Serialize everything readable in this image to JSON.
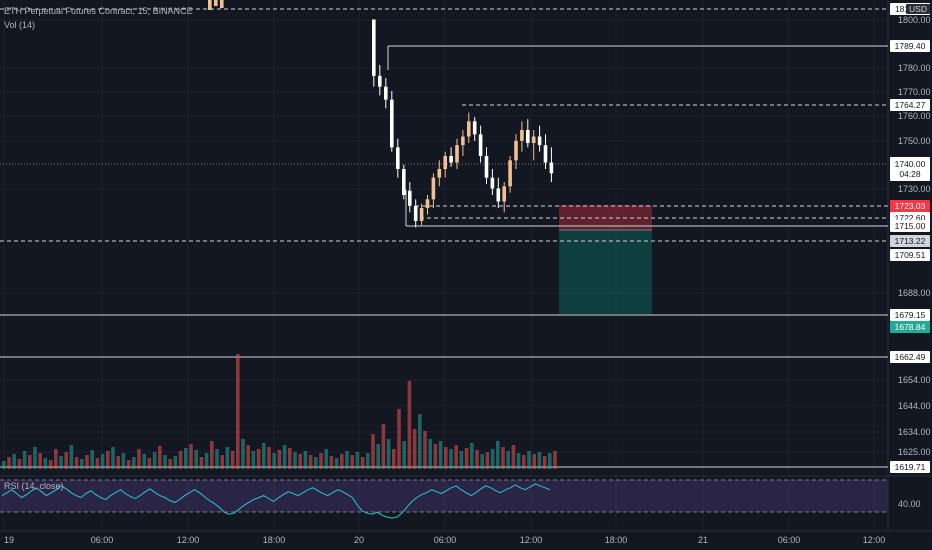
{
  "chart_data": {
    "type": "candlestick",
    "symbol_title": "ETH Perpetual Futures Contract, 15, BINANCE",
    "currency_badge": "USD",
    "volume_label": "Vol (14)",
    "rsi_label": "RSI (14, close)",
    "price_ticks": [
      "1800.00",
      "1780.00",
      "1770.00",
      "1760.00",
      "1750.00",
      "1730.00",
      "1688.00",
      "1654.00",
      "1644.00",
      "1634.00",
      "1625.00"
    ],
    "rsi_tick": "40.00",
    "time_ticks": [
      "19",
      "06:00",
      "12:00",
      "18:00",
      "20",
      "06:00",
      "12:00",
      "18:00",
      "21",
      "06:00",
      "12:00"
    ],
    "horizontal_levels": [
      {
        "label": "1789.40",
        "style": "solid",
        "bg": "#ffffff",
        "fg": "#131722"
      },
      {
        "label": "1764.27",
        "style": "dashed",
        "bg": "#ffffff",
        "fg": "#131722"
      },
      {
        "label": "1723.03",
        "style": "dashed",
        "bg": "#f23645",
        "fg": "#ffffff"
      },
      {
        "label": "1722.60",
        "style": "dashed",
        "bg": "#ffffff",
        "fg": "#131722"
      },
      {
        "label": "1715.00",
        "style": "solid",
        "bg": "#ffffff",
        "fg": "#131722"
      },
      {
        "label": "1713.22",
        "style": "dashed",
        "bg": "#d1d4dc",
        "fg": "#131722"
      },
      {
        "label": "1709.51",
        "style": "none",
        "bg": "#ffffff",
        "fg": "#131722"
      },
      {
        "label": "1679.15",
        "style": "solid",
        "bg": "#ffffff",
        "fg": "#131722"
      },
      {
        "label": "1678.84",
        "style": "none",
        "bg": "#22ab94",
        "fg": "#ffffff"
      },
      {
        "label": "1662.49",
        "style": "solid",
        "bg": "#ffffff",
        "fg": "#131722"
      },
      {
        "label": "1619.71",
        "style": "solid",
        "bg": "#ffffff",
        "fg": "#131722"
      }
    ],
    "current_price": {
      "label": "1740.00",
      "countdown": "04:28"
    },
    "top_price_label": "1811.97",
    "position": {
      "entry": 1723.03,
      "stop": 1730.0,
      "target": 1679.15
    },
    "candles": [
      {
        "o": 1732,
        "h": 1736,
        "l": 1722,
        "c": 1725
      },
      {
        "o": 1725,
        "h": 1728,
        "l": 1715,
        "c": 1718
      },
      {
        "o": 1718,
        "h": 1726,
        "l": 1716,
        "c": 1724
      },
      {
        "o": 1724,
        "h": 1730,
        "l": 1721,
        "c": 1728
      },
      {
        "o": 1728,
        "h": 1740,
        "l": 1724,
        "c": 1738
      },
      {
        "o": 1738,
        "h": 1746,
        "l": 1734,
        "c": 1742
      },
      {
        "o": 1742,
        "h": 1750,
        "l": 1738,
        "c": 1748
      },
      {
        "o": 1748,
        "h": 1752,
        "l": 1743,
        "c": 1745
      },
      {
        "o": 1745,
        "h": 1756,
        "l": 1742,
        "c": 1753
      },
      {
        "o": 1753,
        "h": 1760,
        "l": 1748,
        "c": 1757
      },
      {
        "o": 1757,
        "h": 1768,
        "l": 1754,
        "c": 1764
      },
      {
        "o": 1764,
        "h": 1766,
        "l": 1755,
        "c": 1758
      },
      {
        "o": 1758,
        "h": 1762,
        "l": 1745,
        "c": 1748
      },
      {
        "o": 1748,
        "h": 1752,
        "l": 1735,
        "c": 1738
      },
      {
        "o": 1738,
        "h": 1742,
        "l": 1730,
        "c": 1733
      },
      {
        "o": 1733,
        "h": 1738,
        "l": 1724,
        "c": 1727
      },
      {
        "o": 1727,
        "h": 1736,
        "l": 1722,
        "c": 1734
      },
      {
        "o": 1734,
        "h": 1748,
        "l": 1731,
        "c": 1746
      },
      {
        "o": 1746,
        "h": 1758,
        "l": 1742,
        "c": 1755
      },
      {
        "o": 1755,
        "h": 1764,
        "l": 1750,
        "c": 1760
      },
      {
        "o": 1760,
        "h": 1765,
        "l": 1752,
        "c": 1754
      },
      {
        "o": 1754,
        "h": 1760,
        "l": 1746,
        "c": 1757
      },
      {
        "o": 1757,
        "h": 1762,
        "l": 1750,
        "c": 1753
      },
      {
        "o": 1753,
        "h": 1758,
        "l": 1742,
        "c": 1745
      },
      {
        "o": 1745,
        "h": 1752,
        "l": 1736,
        "c": 1740
      }
    ],
    "volume_bars": [
      {
        "v": 8,
        "up": true
      },
      {
        "v": 12,
        "up": false
      },
      {
        "v": 15,
        "up": true
      },
      {
        "v": 10,
        "up": false
      },
      {
        "v": 18,
        "up": true
      },
      {
        "v": 14,
        "up": false
      },
      {
        "v": 22,
        "up": true
      },
      {
        "v": 16,
        "up": false
      },
      {
        "v": 11,
        "up": true
      },
      {
        "v": 9,
        "up": false
      },
      {
        "v": 20,
        "up": false
      },
      {
        "v": 13,
        "up": true
      },
      {
        "v": 17,
        "up": false
      },
      {
        "v": 24,
        "up": true
      },
      {
        "v": 12,
        "up": false
      },
      {
        "v": 10,
        "up": true
      },
      {
        "v": 14,
        "up": false
      },
      {
        "v": 19,
        "up": true
      },
      {
        "v": 11,
        "up": false
      },
      {
        "v": 15,
        "up": true
      },
      {
        "v": 18,
        "up": false
      },
      {
        "v": 22,
        "up": true
      },
      {
        "v": 13,
        "up": false
      },
      {
        "v": 16,
        "up": true
      },
      {
        "v": 9,
        "up": false
      },
      {
        "v": 12,
        "up": true
      },
      {
        "v": 20,
        "up": false
      },
      {
        "v": 15,
        "up": true
      },
      {
        "v": 11,
        "up": false
      },
      {
        "v": 17,
        "up": true
      },
      {
        "v": 23,
        "up": false
      },
      {
        "v": 14,
        "up": true
      },
      {
        "v": 10,
        "up": false
      },
      {
        "v": 13,
        "up": true
      },
      {
        "v": 18,
        "up": false
      },
      {
        "v": 21,
        "up": true
      },
      {
        "v": 25,
        "up": false
      },
      {
        "v": 19,
        "up": true
      },
      {
        "v": 12,
        "up": false
      },
      {
        "v": 16,
        "up": true
      },
      {
        "v": 28,
        "up": false
      },
      {
        "v": 20,
        "up": true
      },
      {
        "v": 14,
        "up": false
      },
      {
        "v": 22,
        "up": true
      },
      {
        "v": 18,
        "up": false
      },
      {
        "v": 115,
        "up": false
      },
      {
        "v": 30,
        "up": true
      },
      {
        "v": 24,
        "up": false
      },
      {
        "v": 18,
        "up": true
      },
      {
        "v": 20,
        "up": false
      },
      {
        "v": 26,
        "up": true
      },
      {
        "v": 22,
        "up": false
      },
      {
        "v": 16,
        "up": true
      },
      {
        "v": 19,
        "up": false
      },
      {
        "v": 24,
        "up": true
      },
      {
        "v": 21,
        "up": false
      },
      {
        "v": 17,
        "up": true
      },
      {
        "v": 15,
        "up": false
      },
      {
        "v": 18,
        "up": true
      },
      {
        "v": 14,
        "up": false
      },
      {
        "v": 12,
        "up": true
      },
      {
        "v": 16,
        "up": false
      },
      {
        "v": 20,
        "up": true
      },
      {
        "v": 13,
        "up": false
      },
      {
        "v": 11,
        "up": true
      },
      {
        "v": 15,
        "up": false
      },
      {
        "v": 18,
        "up": true
      },
      {
        "v": 14,
        "up": false
      },
      {
        "v": 17,
        "up": true
      },
      {
        "v": 12,
        "up": false
      },
      {
        "v": 16,
        "up": true
      },
      {
        "v": 35,
        "up": false
      },
      {
        "v": 25,
        "up": true
      },
      {
        "v": 45,
        "up": false
      },
      {
        "v": 30,
        "up": true
      },
      {
        "v": 20,
        "up": false
      },
      {
        "v": 60,
        "up": false
      },
      {
        "v": 28,
        "up": true
      },
      {
        "v": 88,
        "up": false
      },
      {
        "v": 40,
        "up": false
      },
      {
        "v": 55,
        "up": true
      },
      {
        "v": 38,
        "up": false
      },
      {
        "v": 30,
        "up": true
      },
      {
        "v": 25,
        "up": false
      },
      {
        "v": 28,
        "up": true
      },
      {
        "v": 22,
        "up": false
      },
      {
        "v": 20,
        "up": true
      },
      {
        "v": 24,
        "up": false
      },
      {
        "v": 18,
        "up": true
      },
      {
        "v": 21,
        "up": false
      },
      {
        "v": 26,
        "up": true
      },
      {
        "v": 19,
        "up": false
      },
      {
        "v": 15,
        "up": true
      },
      {
        "v": 17,
        "up": false
      },
      {
        "v": 20,
        "up": true
      },
      {
        "v": 28,
        "up": true
      },
      {
        "v": 22,
        "up": false
      },
      {
        "v": 18,
        "up": true
      },
      {
        "v": 24,
        "up": false
      },
      {
        "v": 16,
        "up": true
      },
      {
        "v": 14,
        "up": false
      },
      {
        "v": 18,
        "up": true
      },
      {
        "v": 15,
        "up": false
      },
      {
        "v": 17,
        "up": true
      },
      {
        "v": 13,
        "up": false
      },
      {
        "v": 16,
        "up": true
      },
      {
        "v": 18,
        "up": false
      }
    ],
    "rsi_values": [
      52,
      55,
      58,
      54,
      50,
      53,
      57,
      60,
      56,
      52,
      55,
      58,
      62,
      59,
      55,
      52,
      50,
      54,
      57,
      53,
      50,
      48,
      52,
      55,
      58,
      54,
      51,
      49,
      52,
      56,
      59,
      55,
      52,
      50,
      47,
      45,
      48,
      52,
      55,
      58,
      55,
      51,
      47,
      44,
      40,
      35,
      33,
      34,
      38,
      42,
      45,
      48,
      50,
      52,
      49,
      46,
      50,
      53,
      56,
      54,
      52,
      55,
      58,
      60,
      57,
      54,
      52,
      55,
      58,
      56,
      53,
      50,
      42,
      36,
      34,
      33,
      35,
      32,
      30,
      29,
      30,
      34,
      40,
      46,
      50,
      53,
      55,
      58,
      56,
      54,
      57,
      60,
      62,
      58,
      55,
      52,
      55,
      59,
      62,
      60,
      57,
      55,
      58,
      60,
      63,
      60,
      58,
      61,
      64,
      62,
      60,
      58
    ]
  }
}
